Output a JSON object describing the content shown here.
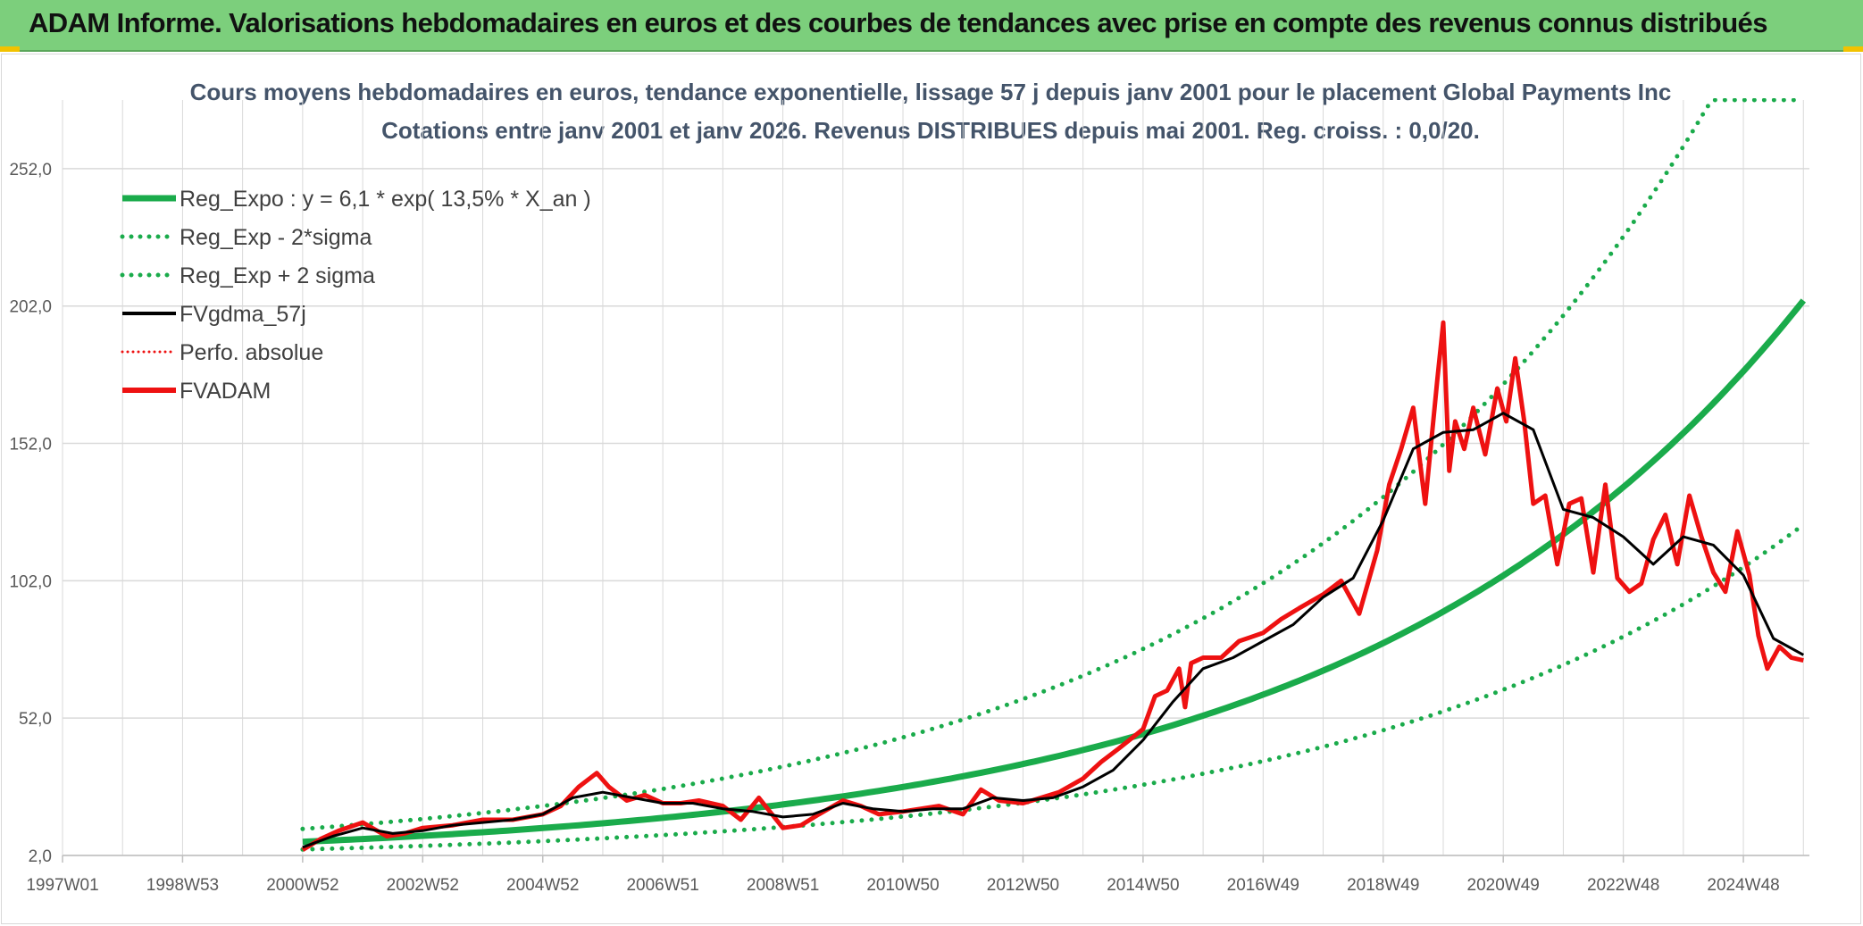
{
  "header": {
    "title": "ADAM Informe. Valorisations hebdomadaires en euros et des courbes de tendances avec prise en compte des revenus connus distribués"
  },
  "colors": {
    "header_bg": "#7ccf7c",
    "reg_green": "#1aab4b",
    "red": "#ee1111",
    "black": "#000000",
    "grid": "#d9d9d9",
    "title": "#44546a"
  },
  "chart_data": {
    "type": "line",
    "title_line1": "Cours moyens hebdomadaires en euros, tendance exponentielle, lissage 57 j depuis janv 2001 pour le placement Global Payments Inc",
    "title_line2": "Cotations entre janv 2001 et janv 2026. Revenus DISTRIBUES depuis mai 2001. Reg. croiss. : 0,0/20.",
    "xlabel": "",
    "ylabel": "",
    "x_range": [
      1997.0,
      2026.1
    ],
    "ylim": [
      2,
      277
    ],
    "y_ticks": [
      2,
      52,
      102,
      152,
      202,
      252
    ],
    "y_tick_labels": [
      "2,0",
      "52,0",
      "102,0",
      "152,0",
      "202,0",
      "252,0"
    ],
    "x_ticks": [
      {
        "label": "1997W01",
        "x": 1997.0
      },
      {
        "label": "1998W53",
        "x": 1999.0
      },
      {
        "label": "2000W52",
        "x": 2001.0
      },
      {
        "label": "2002W52",
        "x": 2003.0
      },
      {
        "label": "2004W52",
        "x": 2005.0
      },
      {
        "label": "2006W51",
        "x": 2007.0
      },
      {
        "label": "2008W51",
        "x": 2009.0
      },
      {
        "label": "2010W50",
        "x": 2011.0
      },
      {
        "label": "2012W50",
        "x": 2013.0
      },
      {
        "label": "2014W50",
        "x": 2015.0
      },
      {
        "label": "2016W49",
        "x": 2017.0
      },
      {
        "label": "2018W49",
        "x": 2019.0
      },
      {
        "label": "2020W49",
        "x": 2021.0
      },
      {
        "label": "2022W48",
        "x": 2023.0
      },
      {
        "label": "2024W48",
        "x": 2025.0
      }
    ],
    "legend": [
      {
        "key": "reg_expo",
        "label": "Reg_Expo : y = 6,1 * exp( 13,5% *  X_an )",
        "color": "#1aab4b",
        "style": "solid",
        "width": 7
      },
      {
        "key": "reg_minus",
        "label": "Reg_Exp - 2*sigma",
        "color": "#1aab4b",
        "style": "dotted",
        "width": 5
      },
      {
        "key": "reg_plus",
        "label": "Reg_Exp + 2 sigma",
        "color": "#1aab4b",
        "style": "dotted",
        "width": 5
      },
      {
        "key": "fvgdma",
        "label": "FVgdma_57j",
        "color": "#000000",
        "style": "solid",
        "width": 4
      },
      {
        "key": "perfo",
        "label": "Perfo. absolue",
        "color": "#ee1111",
        "style": "dotted",
        "width": 3
      },
      {
        "key": "fvadam",
        "label": "FVADAM",
        "color": "#ee1111",
        "style": "solid",
        "width": 6
      }
    ],
    "regression": {
      "a": 6.1,
      "rate": 0.135,
      "start_year": 2001.0,
      "end_year": 2026.0,
      "minus_factor": 0.6,
      "plus_factor": 1.67
    },
    "series": [
      {
        "name": "FVADAM",
        "x": [
          2001.0,
          2001.3,
          2001.6,
          2002.0,
          2002.4,
          2002.7,
          2003.0,
          2003.5,
          2004.0,
          2004.5,
          2005.0,
          2005.3,
          2005.6,
          2005.9,
          2006.1,
          2006.4,
          2006.7,
          2007.0,
          2007.3,
          2007.6,
          2008.0,
          2008.3,
          2008.6,
          2009.0,
          2009.3,
          2009.6,
          2010.0,
          2010.3,
          2010.6,
          2011.0,
          2011.3,
          2011.6,
          2012.0,
          2012.3,
          2012.6,
          2013.0,
          2013.3,
          2013.6,
          2014.0,
          2014.3,
          2014.6,
          2015.0,
          2015.2,
          2015.4,
          2015.6,
          2015.7,
          2015.8,
          2016.0,
          2016.3,
          2016.6,
          2017.0,
          2017.3,
          2017.6,
          2018.0,
          2018.3,
          2018.6,
          2018.9,
          2019.1,
          2019.3,
          2019.5,
          2019.7,
          2019.9,
          2020.0,
          2020.1,
          2020.2,
          2020.35,
          2020.5,
          2020.7,
          2020.9,
          2021.05,
          2021.2,
          2021.35,
          2021.5,
          2021.7,
          2021.9,
          2022.1,
          2022.3,
          2022.5,
          2022.7,
          2022.9,
          2023.1,
          2023.3,
          2023.5,
          2023.7,
          2023.9,
          2024.1,
          2024.3,
          2024.5,
          2024.7,
          2024.9,
          2025.1,
          2025.25,
          2025.4,
          2025.6,
          2025.8,
          2026.0
        ],
        "y": [
          4,
          8,
          11,
          14,
          9,
          10,
          12,
          13,
          15,
          15,
          17,
          20,
          27,
          32,
          27,
          22,
          24,
          21,
          21,
          22,
          20,
          15,
          23,
          12,
          13,
          17,
          22,
          20,
          17,
          18,
          19,
          20,
          17,
          26,
          22,
          21,
          23,
          25,
          30,
          36,
          41,
          48,
          60,
          62,
          70,
          56,
          72,
          74,
          74,
          80,
          83,
          88,
          92,
          97,
          102,
          90,
          113,
          137,
          150,
          165,
          130,
          175,
          196,
          142,
          160,
          150,
          165,
          148,
          172,
          160,
          183,
          160,
          130,
          133,
          108,
          130,
          132,
          105,
          137,
          103,
          98,
          101,
          117,
          126,
          108,
          133,
          118,
          105,
          98,
          120,
          104,
          82,
          70,
          78,
          74,
          73
        ]
      },
      {
        "name": "FVgdma_57j",
        "x": [
          2001.0,
          2001.5,
          2002.0,
          2002.5,
          2003.0,
          2003.5,
          2004.0,
          2004.5,
          2005.0,
          2005.5,
          2006.0,
          2006.5,
          2007.0,
          2007.5,
          2008.0,
          2008.5,
          2009.0,
          2009.5,
          2010.0,
          2010.5,
          2011.0,
          2011.5,
          2012.0,
          2012.5,
          2013.0,
          2013.5,
          2014.0,
          2014.5,
          2015.0,
          2015.5,
          2016.0,
          2016.5,
          2017.0,
          2017.5,
          2018.0,
          2018.5,
          2019.0,
          2019.5,
          2020.0,
          2020.5,
          2021.0,
          2021.5,
          2022.0,
          2022.5,
          2023.0,
          2023.5,
          2024.0,
          2024.5,
          2025.0,
          2025.5,
          2026.0
        ],
        "y": [
          5,
          9,
          12,
          10,
          11,
          13,
          14,
          15,
          17,
          23,
          25,
          23,
          21,
          21,
          19,
          18,
          16,
          17,
          21,
          19,
          18,
          19,
          19,
          23,
          22,
          23,
          27,
          33,
          44,
          58,
          70,
          74,
          80,
          86,
          96,
          103,
          124,
          150,
          156,
          157,
          163,
          157,
          128,
          125,
          118,
          108,
          118,
          115,
          104,
          81,
          75
        ]
      }
    ]
  }
}
